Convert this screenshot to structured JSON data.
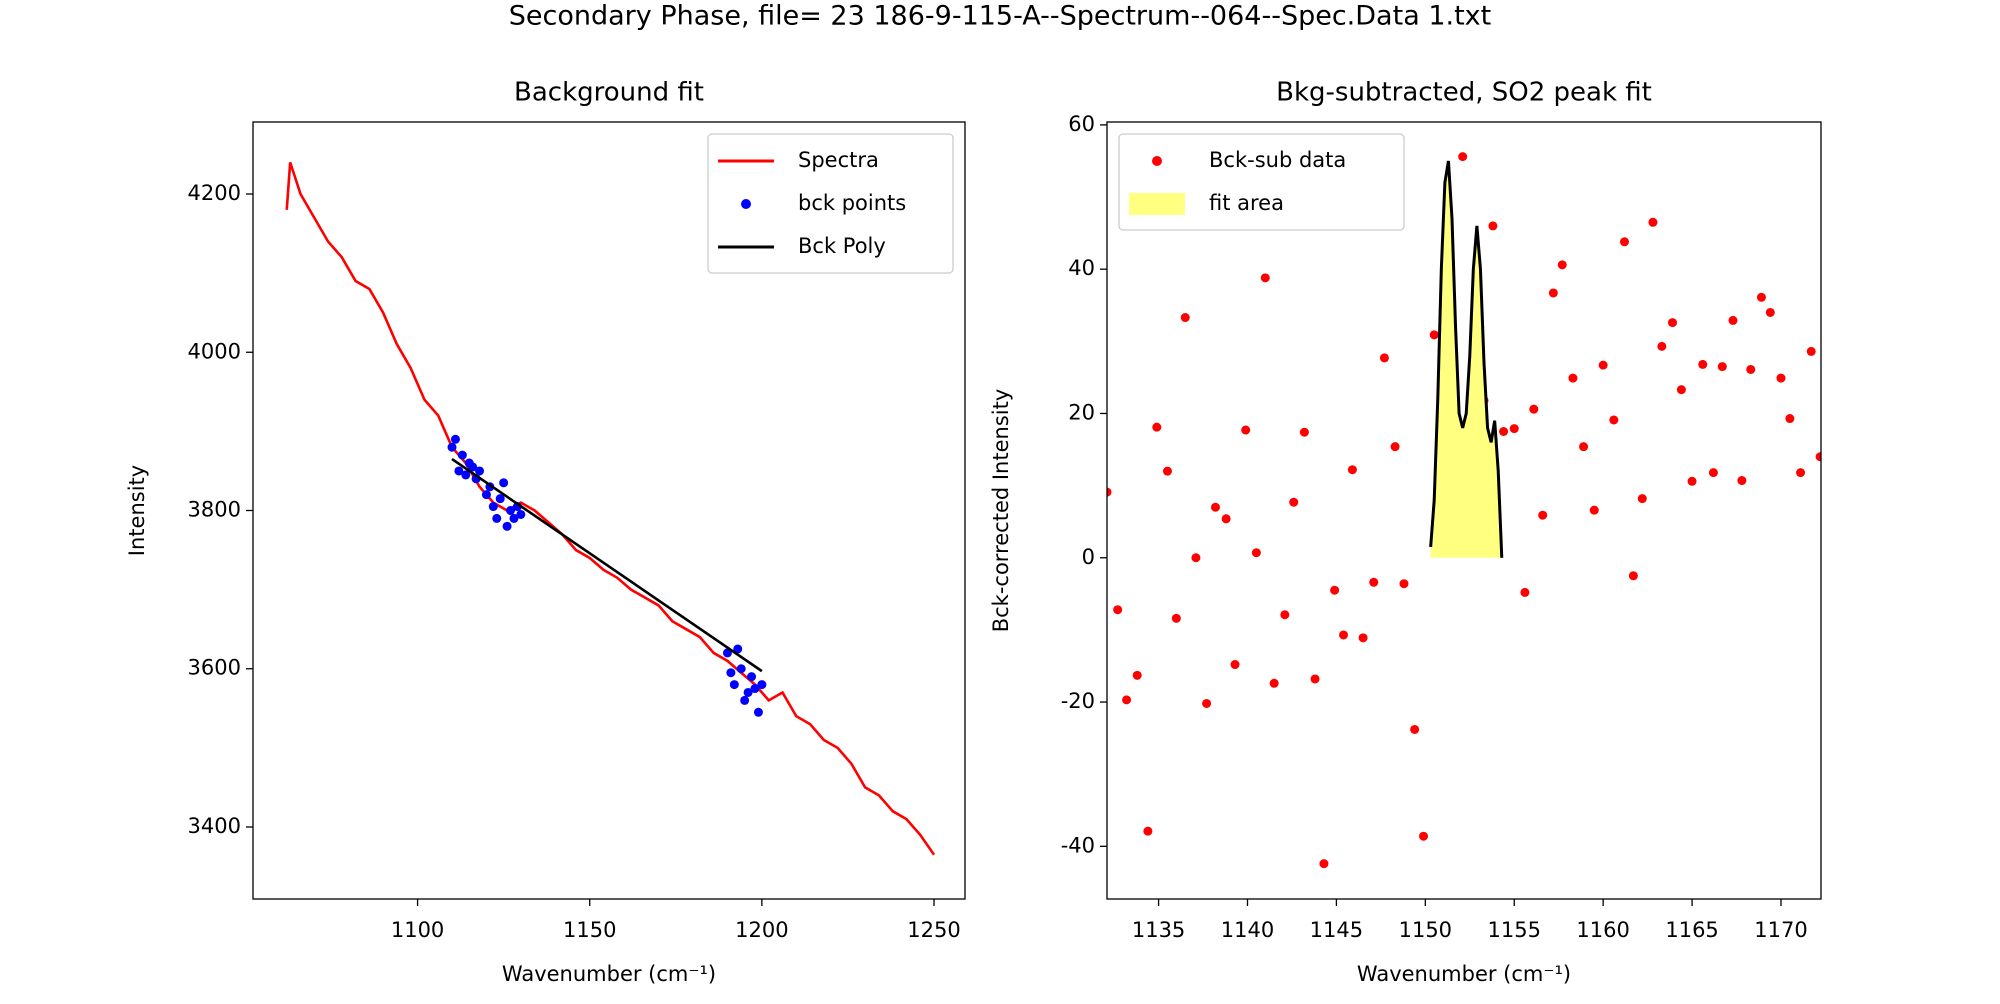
{
  "title": "Secondary Phase, file= 23 186-9-115-A--Spectrum--064--Spec.Data 1.txt",
  "chart_data": [
    {
      "type": "line",
      "title": "Background fit",
      "xlabel": "Wavenumber (cm⁻¹)",
      "ylabel": "Intensity",
      "xlim": [
        1052.2,
        1259
      ],
      "ylim": [
        3309,
        4291
      ],
      "xticks": [
        1100,
        1150,
        1200,
        1250
      ],
      "yticks": [
        3400,
        3600,
        3800,
        4000,
        4200
      ],
      "legend": "upper right",
      "series": [
        {
          "name": "Spectra",
          "kind": "line",
          "color": "#ff0000",
          "x": [
            1062,
            1063,
            1066,
            1070,
            1074,
            1078,
            1082,
            1086,
            1090,
            1094,
            1098,
            1102,
            1106,
            1110,
            1114,
            1118,
            1122,
            1126,
            1130,
            1134,
            1138,
            1142,
            1146,
            1150,
            1154,
            1158,
            1162,
            1166,
            1170,
            1174,
            1178,
            1182,
            1186,
            1190,
            1194,
            1198,
            1202,
            1206,
            1210,
            1214,
            1218,
            1222,
            1226,
            1230,
            1234,
            1238,
            1242,
            1246,
            1250
          ],
          "values": [
            4180,
            4240,
            4200,
            4170,
            4140,
            4120,
            4090,
            4080,
            4050,
            4010,
            3980,
            3940,
            3920,
            3880,
            3860,
            3830,
            3810,
            3800,
            3810,
            3800,
            3785,
            3770,
            3750,
            3740,
            3725,
            3715,
            3700,
            3690,
            3680,
            3660,
            3650,
            3640,
            3620,
            3610,
            3595,
            3580,
            3560,
            3570,
            3540,
            3530,
            3510,
            3500,
            3480,
            3450,
            3440,
            3420,
            3410,
            3390,
            3365
          ]
        },
        {
          "name": "bck points",
          "kind": "scatter",
          "color": "#0000ff",
          "x": [
            1110,
            1111,
            1112,
            1113,
            1114,
            1115,
            1116,
            1117,
            1118,
            1120,
            1121,
            1122,
            1123,
            1124,
            1125,
            1126,
            1127,
            1128,
            1129,
            1130,
            1190,
            1191,
            1192,
            1193,
            1194,
            1195,
            1196,
            1197,
            1198,
            1199,
            1200
          ],
          "values": [
            3880,
            3890,
            3850,
            3870,
            3845,
            3860,
            3855,
            3840,
            3850,
            3820,
            3830,
            3805,
            3790,
            3815,
            3835,
            3780,
            3800,
            3790,
            3805,
            3795,
            3620,
            3595,
            3580,
            3625,
            3600,
            3560,
            3570,
            3590,
            3575,
            3545,
            3580
          ]
        },
        {
          "name": "Bck Poly",
          "kind": "line",
          "color": "#000000",
          "x": [
            1110,
            1155,
            1200
          ],
          "values": [
            3865,
            3731,
            3597
          ]
        }
      ]
    },
    {
      "type": "scatter",
      "title": "Bkg-subtracted, SO2 peak fit",
      "xlabel": "Wavenumber (cm⁻¹)",
      "ylabel": "Bck-corrected Intensity",
      "xlim": [
        1132.1,
        1172.25
      ],
      "ylim": [
        -47.3,
        60.4
      ],
      "xticks": [
        1135,
        1140,
        1145,
        1150,
        1155,
        1160,
        1165,
        1170
      ],
      "yticks": [
        -40,
        -20,
        0,
        20,
        40,
        60
      ],
      "legend": "upper left",
      "series": [
        {
          "name": "Bck-sub data",
          "kind": "scatter",
          "color": "#ff0000",
          "x": [
            1132.1,
            1132.7,
            1133.2,
            1133.8,
            1134.4,
            1134.9,
            1135.5,
            1136.0,
            1136.5,
            1137.1,
            1137.7,
            1138.2,
            1138.8,
            1139.3,
            1139.9,
            1140.5,
            1141.0,
            1141.5,
            1142.1,
            1142.6,
            1143.2,
            1143.8,
            1144.3,
            1144.9,
            1145.4,
            1145.9,
            1146.5,
            1147.1,
            1147.7,
            1148.3,
            1148.8,
            1149.4,
            1149.9,
            1150.5,
            1151.1,
            1151.6,
            1152.1,
            1152.7,
            1153.3,
            1153.8,
            1154.4,
            1155.0,
            1155.6,
            1156.1,
            1156.6,
            1157.2,
            1157.7,
            1158.3,
            1158.9,
            1159.5,
            1160.0,
            1160.6,
            1161.2,
            1161.7,
            1162.2,
            1162.8,
            1163.3,
            1163.9,
            1164.4,
            1165.0,
            1165.6,
            1166.2,
            1166.7,
            1167.3,
            1167.8,
            1168.3,
            1168.9,
            1169.4,
            1170.0,
            1170.5,
            1171.1,
            1171.7,
            1172.2
          ],
          "values": [
            9.1,
            -7.2,
            -19.7,
            -16.3,
            -37.9,
            18.1,
            12.0,
            -8.4,
            33.3,
            0,
            -20.2,
            7.0,
            5.4,
            -14.8,
            17.7,
            0.7,
            38.8,
            -17.4,
            -7.9,
            7.7,
            17.4,
            -16.8,
            -42.4,
            -4.5,
            -10.7,
            12.2,
            -11.1,
            -3.4,
            27.7,
            15.4,
            -3.6,
            -23.8,
            -38.6,
            30.9,
            5.7,
            15.7,
            55.6,
            29.0,
            21.8,
            46.0,
            17.5,
            17.9,
            -4.8,
            20.6,
            5.9,
            36.7,
            40.6,
            24.9,
            15.4,
            6.6,
            26.7,
            19.1,
            43.8,
            -2.5,
            8.2,
            46.5,
            29.3,
            32.6,
            23.3,
            10.6,
            26.8,
            11.8,
            26.5,
            32.9,
            10.7,
            26.1,
            36.1,
            34.0,
            24.9,
            19.3,
            11.8,
            28.6,
            14.0
          ]
        },
        {
          "name": "fit area",
          "kind": "area",
          "color": "#ffff80",
          "line_color": "#000000",
          "x": [
            1150.3,
            1150.5,
            1150.7,
            1150.9,
            1151.1,
            1151.3,
            1151.5,
            1151.7,
            1151.9,
            1152.1,
            1152.3,
            1152.5,
            1152.7,
            1152.9,
            1153.1,
            1153.3,
            1153.5,
            1153.7,
            1153.9,
            1154.1,
            1154.3
          ],
          "values": [
            1.5,
            8,
            22,
            40,
            52,
            55,
            47,
            32,
            20,
            18,
            20,
            28,
            40,
            46,
            40,
            27,
            18,
            16,
            19,
            12,
            0
          ]
        }
      ]
    }
  ]
}
